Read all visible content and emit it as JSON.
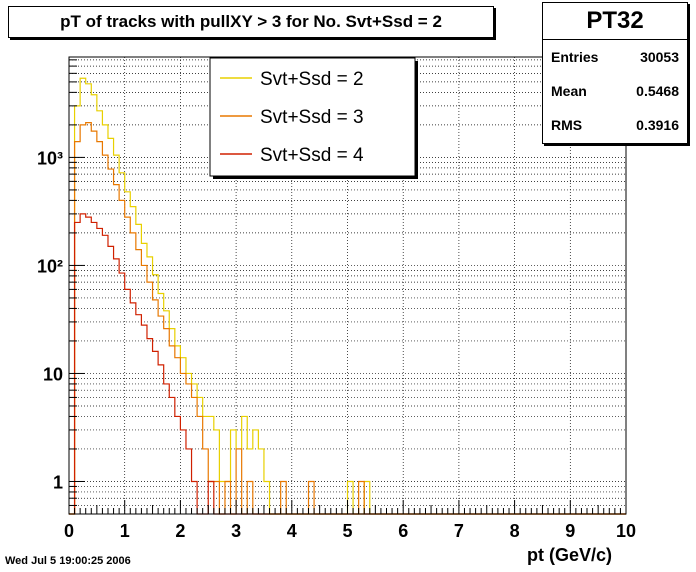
{
  "title": "pT of tracks with pullXY > 3 for No. Svt+Ssd = 2",
  "stats": {
    "name": "PT32",
    "entries_label": "Entries",
    "entries_value": "30053",
    "mean_label": "Mean",
    "mean_value": "0.5468",
    "rms_label": "RMS",
    "rms_value": "0.3916"
  },
  "timestamp": "Wed Jul  5 19:00:25 2006",
  "chart_data": {
    "type": "line",
    "xlabel": "pt (GeV/c)",
    "ylabel": "",
    "xlim": [
      0,
      10
    ],
    "ylim": [
      0.5,
      8500
    ],
    "log_y": true,
    "grid": true,
    "x_ticks": [
      "0",
      "1",
      "2",
      "3",
      "4",
      "5",
      "6",
      "7",
      "8",
      "9",
      "10"
    ],
    "y_ticks": [
      {
        "value": 1,
        "label": "1"
      },
      {
        "value": 10,
        "label": "10"
      },
      {
        "value": 100,
        "label": "10²"
      },
      {
        "value": 1000,
        "label": "10³"
      }
    ],
    "legend_position": "top-center",
    "bin_width": 0.1,
    "series": [
      {
        "name": "Svt+Ssd = 2",
        "color": "#e8d000",
        "values": [
          0,
          3000,
          5400,
          4800,
          3800,
          2700,
          2000,
          1500,
          1050,
          720,
          480,
          350,
          240,
          160,
          120,
          82,
          55,
          38,
          26,
          18,
          14,
          10,
          8,
          6,
          4,
          4,
          3,
          1,
          1,
          3,
          2,
          4,
          2,
          3,
          2,
          1,
          0,
          0,
          0,
          0,
          0,
          0,
          0,
          0,
          0,
          0,
          0,
          0,
          0,
          0,
          1,
          0,
          0,
          1,
          0,
          0,
          0,
          0,
          0,
          0,
          0,
          0,
          0,
          0,
          0,
          0,
          0,
          0,
          0,
          0,
          0,
          0,
          0,
          0,
          0,
          0,
          0,
          0,
          0,
          0,
          0,
          0,
          0,
          0,
          0,
          0,
          0,
          0,
          0,
          0,
          0,
          0,
          0,
          0,
          0,
          0,
          0,
          0,
          0,
          0
        ]
      },
      {
        "name": "Svt+Ssd = 3",
        "color": "#e87800",
        "values": [
          0,
          1400,
          2000,
          2100,
          1750,
          1400,
          1050,
          780,
          560,
          400,
          280,
          200,
          140,
          100,
          70,
          48,
          34,
          26,
          18,
          14,
          10,
          8,
          6,
          4,
          2,
          1,
          1,
          0,
          1,
          0,
          2,
          0,
          1,
          0,
          0,
          0,
          0,
          0,
          1,
          0,
          0,
          0,
          0,
          1,
          0,
          0,
          0,
          0,
          0,
          0,
          0,
          0,
          1,
          0,
          0,
          0,
          0,
          0,
          0,
          0,
          0,
          0,
          0,
          0,
          0,
          0,
          0,
          0,
          0,
          0,
          0,
          0,
          0,
          0,
          0,
          0,
          0,
          0,
          0,
          0,
          0,
          0,
          0,
          0,
          0,
          0,
          0,
          0,
          0,
          0,
          0,
          0,
          0,
          0,
          0,
          0,
          0,
          0,
          0,
          0
        ]
      },
      {
        "name": "Svt+Ssd = 4",
        "color": "#d02000",
        "values": [
          0,
          250,
          300,
          280,
          250,
          220,
          190,
          150,
          115,
          85,
          60,
          45,
          35,
          28,
          21,
          16,
          12,
          8,
          6,
          4,
          3,
          2,
          1,
          0,
          0,
          1,
          0,
          0,
          0,
          0,
          0,
          0,
          0,
          0,
          0,
          0,
          0,
          0,
          0,
          0,
          0,
          0,
          0,
          0,
          0,
          0,
          0,
          0,
          0,
          0,
          0,
          0,
          0,
          0,
          0,
          0,
          0,
          0,
          0,
          0,
          0,
          0,
          0,
          0,
          0,
          0,
          0,
          0,
          0,
          0,
          0,
          0,
          0,
          0,
          0,
          0,
          0,
          0,
          0,
          0,
          0,
          0,
          0,
          0,
          0,
          0,
          0,
          0,
          0,
          0,
          0,
          0,
          0,
          0,
          0,
          0,
          0,
          0,
          0,
          0
        ]
      }
    ]
  }
}
